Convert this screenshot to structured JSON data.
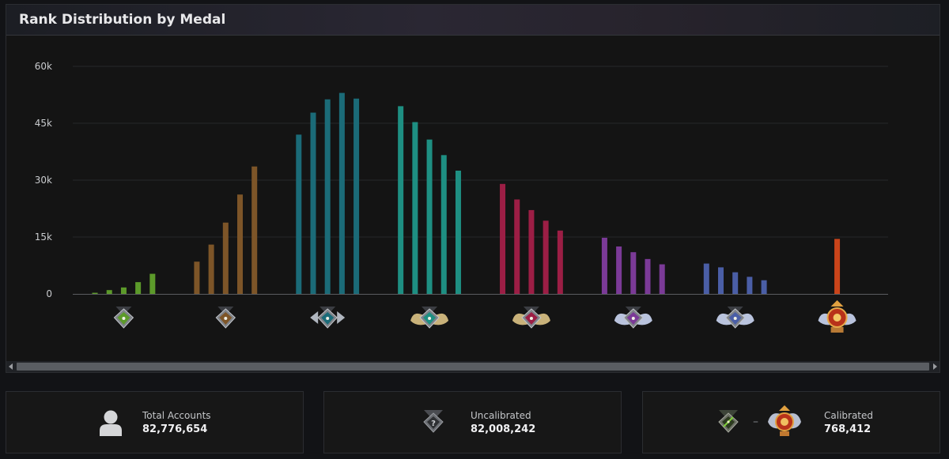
{
  "panel": {
    "title": "Rank Distribution by Medal"
  },
  "chart_data": {
    "type": "bar",
    "title": "Rank Distribution by Medal",
    "ylim": [
      0,
      60000
    ],
    "yticks": [
      {
        "value": 0,
        "label": "0"
      },
      {
        "value": 15000,
        "label": "15k"
      },
      {
        "value": 30000,
        "label": "30k"
      },
      {
        "value": 45000,
        "label": "45k"
      },
      {
        "value": 60000,
        "label": "60k"
      }
    ],
    "grid": true,
    "groups": [
      {
        "medal": "herald-medal",
        "color": "#5c9a2a",
        "values": [
          300,
          1000,
          1700,
          3100,
          5300
        ]
      },
      {
        "medal": "guardian-medal",
        "color": "#7d5528",
        "values": [
          8500,
          13000,
          18800,
          26200,
          33600
        ]
      },
      {
        "medal": "crusader-medal",
        "color": "#1b6b78",
        "values": [
          42000,
          47800,
          51300,
          53000,
          51500
        ]
      },
      {
        "medal": "archon-medal",
        "color": "#1e8f82",
        "values": [
          49500,
          45300,
          40700,
          36600,
          32500
        ]
      },
      {
        "medal": "legend-medal",
        "color": "#9c1e45",
        "values": [
          29000,
          24900,
          22100,
          19300,
          16700
        ]
      },
      {
        "medal": "ancient-medal",
        "color": "#7b3a97",
        "values": [
          14800,
          12500,
          11000,
          9200,
          7800
        ]
      },
      {
        "medal": "divine-medal",
        "color": "#4a5ea6",
        "values": [
          8000,
          7000,
          5700,
          4500,
          3600
        ]
      },
      {
        "medal": "immortal-medal",
        "color": "#c9441a",
        "values": [
          14500
        ]
      }
    ]
  },
  "stats": {
    "total": {
      "label": "Total Accounts",
      "value": "82,776,654",
      "icon": "user-icon"
    },
    "uncalibrated": {
      "label": "Uncalibrated",
      "value": "82,008,242",
      "icon": "uncalibrated-medal-icon"
    },
    "calibrated": {
      "label": "Calibrated",
      "value": "768,412",
      "icon_from": "herald-medal-icon",
      "icon_to": "immortal-medal-icon",
      "separator": "–"
    }
  }
}
